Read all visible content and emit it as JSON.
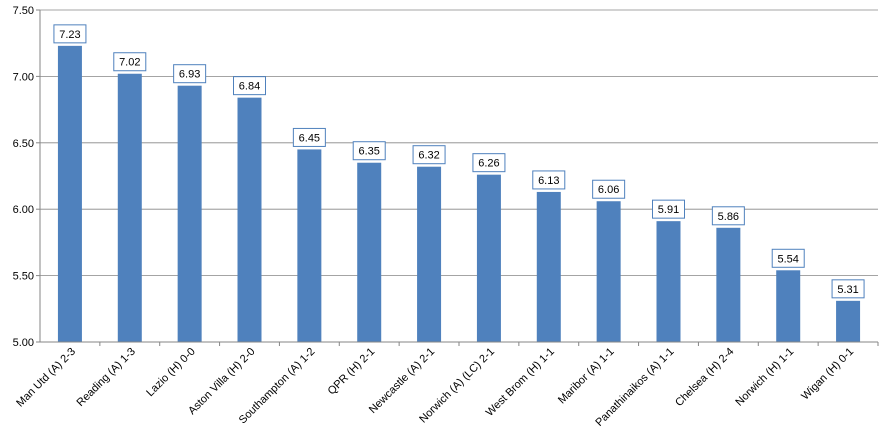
{
  "chart_data": {
    "type": "bar",
    "categories": [
      "Man Utd (A) 2-3",
      "Reading (A) 1-3",
      "Lazio (H) 0-0",
      "Aston Villa (H) 2-0",
      "Southampton (A) 1-2",
      "QPR (H) 2-1",
      "Newcastle (A) 2-1",
      "Norwich (A) (LC) 2-1",
      "West Brom (H) 1-1",
      "Maribor (A) 1-1",
      "Panathinaikos (A) 1-1",
      "Chelsea (H) 2-4",
      "Norwich (H) 1-1",
      "Wigan (H) 0-1"
    ],
    "values": [
      7.23,
      7.02,
      6.93,
      6.84,
      6.45,
      6.35,
      6.32,
      6.26,
      6.13,
      6.06,
      5.91,
      5.86,
      5.54,
      5.31
    ],
    "data_labels": [
      "7.23",
      "7.02",
      "6.93",
      "6.84",
      "6.45",
      "6.35",
      "6.32",
      "6.26",
      "6.13",
      "6.06",
      "5.91",
      "5.86",
      "5.54",
      "5.31"
    ],
    "y_ticks": [
      "5.00",
      "5.50",
      "6.00",
      "6.50",
      "7.00",
      "7.50"
    ],
    "y_tick_values": [
      5.0,
      5.5,
      6.0,
      6.5,
      7.0,
      7.5
    ],
    "ylim": [
      5.0,
      7.5
    ],
    "grid": true,
    "legend": "none",
    "bar_color": "#4f81bd",
    "label_border_color": "#4f81bd",
    "gridline_color": "#868686"
  }
}
